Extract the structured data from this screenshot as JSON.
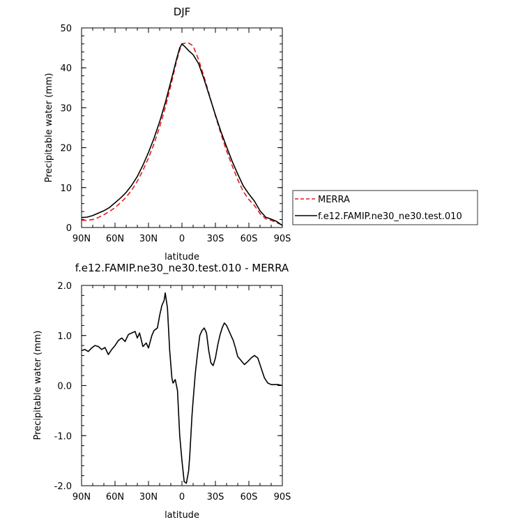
{
  "chart_data": [
    {
      "type": "line",
      "title": "DJF",
      "xlabel": "latitude",
      "ylabel": "Precipitable water (mm)",
      "xlim": [
        90,
        -90
      ],
      "ylim": [
        0,
        50
      ],
      "x_ticks": [
        90,
        60,
        30,
        0,
        -30,
        -60,
        -90
      ],
      "x_tick_labels": [
        "90N",
        "60N",
        "30N",
        "0",
        "30S",
        "60S",
        "90S"
      ],
      "y_ticks": [
        0,
        10,
        20,
        30,
        40,
        50
      ],
      "y_tick_labels": [
        "0",
        "10",
        "20",
        "30",
        "40",
        "50"
      ],
      "legend_position": "right, outside plot",
      "series": [
        {
          "name": "MERRA",
          "color": "#e31a1c",
          "dash": "dashed",
          "x": [
            90,
            85,
            80,
            75,
            70,
            65,
            60,
            55,
            50,
            45,
            40,
            35,
            30,
            25,
            20,
            15,
            10,
            5,
            2,
            0,
            -3,
            -6,
            -10,
            -15,
            -20,
            -25,
            -30,
            -35,
            -40,
            -45,
            -50,
            -55,
            -60,
            -65,
            -70,
            -75,
            -80,
            -85,
            -90
          ],
          "y": [
            1.8,
            1.8,
            2.0,
            2.5,
            3.2,
            4.0,
            5.0,
            6.2,
            7.6,
            9.4,
            11.6,
            14.3,
            17.4,
            21.0,
            25.2,
            30.0,
            35.5,
            41.5,
            44.5,
            46.0,
            46.2,
            46.2,
            45.5,
            42.0,
            37.6,
            32.8,
            28.0,
            23.4,
            19.2,
            15.5,
            12.0,
            9.0,
            7.0,
            5.5,
            3.5,
            2.2,
            1.8,
            1.2,
            0.6
          ]
        },
        {
          "name": "f.e12.FAMIP.ne30_ne30.test.010",
          "color": "#000000",
          "dash": "solid",
          "x": [
            90,
            85,
            80,
            75,
            70,
            65,
            60,
            55,
            50,
            45,
            40,
            35,
            30,
            25,
            20,
            15,
            10,
            5,
            2,
            0,
            -3,
            -6,
            -10,
            -15,
            -20,
            -25,
            -30,
            -35,
            -40,
            -45,
            -50,
            -55,
            -60,
            -65,
            -70,
            -75,
            -80,
            -85,
            -90
          ],
          "y": [
            2.5,
            2.6,
            3.0,
            3.6,
            4.2,
            5.0,
            6.2,
            7.4,
            8.8,
            10.6,
            12.8,
            15.6,
            18.8,
            22.4,
            26.5,
            31.2,
            36.5,
            42.0,
            45.0,
            46.0,
            45.2,
            44.3,
            43.3,
            41.0,
            37.0,
            32.6,
            28.2,
            24.0,
            20.2,
            16.6,
            13.4,
            10.4,
            8.4,
            6.6,
            4.2,
            2.6,
            2.1,
            1.5,
            0.5
          ]
        }
      ]
    },
    {
      "type": "line",
      "title": "f.e12.FAMIP.ne30_ne30.test.010 - MERRA",
      "xlabel": "latitude",
      "ylabel": "Precipitable water (mm)",
      "xlim": [
        90,
        -90
      ],
      "ylim": [
        -2.0,
        2.0
      ],
      "x_ticks": [
        90,
        60,
        30,
        0,
        -30,
        -60,
        -90
      ],
      "x_tick_labels": [
        "90N",
        "60N",
        "30N",
        "0",
        "30S",
        "60S",
        "90S"
      ],
      "y_ticks": [
        -2.0,
        -1.0,
        0.0,
        1.0,
        2.0
      ],
      "y_tick_labels": [
        "-2.0",
        "-1.0",
        "0.0",
        "1.0",
        "2.0"
      ],
      "series": [
        {
          "color": "#000000",
          "dash": "solid",
          "x": [
            90,
            87,
            84,
            81,
            78,
            75,
            72,
            69,
            66,
            63,
            60,
            57,
            54,
            51,
            48,
            45,
            42,
            40,
            38,
            35,
            32,
            30,
            27,
            25,
            22,
            20,
            18,
            16,
            15,
            13,
            11,
            9,
            8,
            6,
            4,
            3,
            2,
            0,
            -2,
            -4,
            -6,
            -7,
            -8,
            -9,
            -10,
            -12,
            -14,
            -16,
            -18,
            -20,
            -22,
            -24,
            -26,
            -28,
            -30,
            -32,
            -34,
            -36,
            -38,
            -40,
            -43,
            -46,
            -48,
            -50,
            -53,
            -56,
            -59,
            -62,
            -65,
            -68,
            -71,
            -74,
            -77,
            -80,
            -83,
            -86,
            -90
          ],
          "y": [
            0.7,
            0.72,
            0.68,
            0.75,
            0.8,
            0.78,
            0.72,
            0.76,
            0.62,
            0.72,
            0.8,
            0.9,
            0.95,
            0.88,
            1.02,
            1.05,
            1.08,
            0.95,
            1.05,
            0.78,
            0.85,
            0.75,
            1.0,
            1.1,
            1.15,
            1.4,
            1.6,
            1.7,
            1.85,
            1.55,
            0.7,
            0.15,
            0.05,
            0.12,
            -0.1,
            -0.55,
            -1.0,
            -1.5,
            -1.92,
            -1.95,
            -1.7,
            -1.4,
            -1.0,
            -0.6,
            -0.3,
            0.25,
            0.65,
            1.0,
            1.1,
            1.15,
            1.05,
            0.7,
            0.45,
            0.4,
            0.55,
            0.8,
            1.0,
            1.15,
            1.25,
            1.2,
            1.05,
            0.9,
            0.75,
            0.58,
            0.5,
            0.42,
            0.48,
            0.55,
            0.6,
            0.55,
            0.35,
            0.15,
            0.05,
            0.02,
            0.02,
            0.02,
            0.0
          ]
        }
      ]
    }
  ]
}
